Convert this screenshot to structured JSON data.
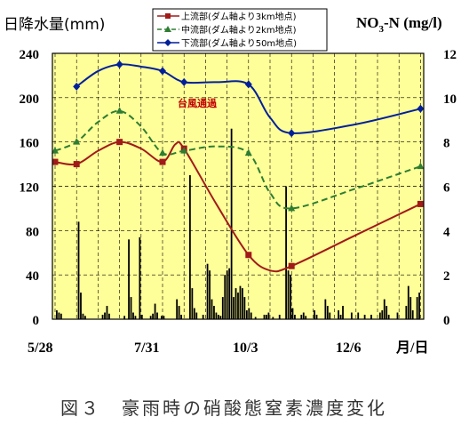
{
  "chart_data": {
    "type": "line",
    "left_axis_title": "日降水量(mm)",
    "right_axis_title_main": "NO",
    "right_axis_title_sub": "3",
    "right_axis_title_rest": "-N (mg/l)",
    "x_ticks": [
      "5/28",
      "7/31",
      "10/3",
      "12/6",
      "月/日"
    ],
    "y_left_ticks": [
      "0",
      "40",
      "80",
      "120",
      "160",
      "200",
      "240"
    ],
    "y_right_ticks": [
      "0",
      "2",
      "4",
      "6",
      "8",
      "10",
      "12"
    ],
    "ylim_left": [
      0,
      240
    ],
    "ylim_right": [
      0,
      12
    ],
    "annotation": "台風通過",
    "caption": "図３　豪雨時の硝酸態窒素濃度変化",
    "grid": true,
    "legend_position": "top-center",
    "colors": {
      "plot_bg": "#ffff99",
      "series_1": "#a11a1a",
      "series_2": "#2e7d32",
      "series_3": "#001f9a",
      "rain_bars": "#000000",
      "annotation": "#c00000"
    },
    "series": [
      {
        "name": "上流部(ダム軸より3km地点)",
        "marker": "square",
        "dash": "solid",
        "points": [
          [
            0,
            7.1
          ],
          [
            1,
            7.0
          ],
          [
            3,
            8.0
          ],
          [
            5,
            7.1
          ],
          [
            6,
            7.7
          ],
          [
            9,
            2.9
          ],
          [
            11,
            2.4
          ],
          [
            17,
            5.2
          ]
        ],
        "curve": [
          [
            0,
            7.1
          ],
          [
            1,
            7.0
          ],
          [
            2,
            7.6
          ],
          [
            3,
            8.0
          ],
          [
            4,
            7.7
          ],
          [
            5,
            7.1
          ],
          [
            5.6,
            7.9
          ],
          [
            6,
            7.7
          ],
          [
            7.5,
            5.2
          ],
          [
            9,
            2.9
          ],
          [
            10,
            2.2
          ],
          [
            11,
            2.4
          ],
          [
            14,
            3.8
          ],
          [
            17,
            5.2
          ]
        ]
      },
      {
        "name": "中流部(ダム軸より2km地点)",
        "marker": "triangle",
        "dash": "dashed",
        "points": [
          [
            0,
            7.6
          ],
          [
            1,
            8.0
          ],
          [
            3,
            9.4
          ],
          [
            5,
            7.5
          ],
          [
            6,
            7.6
          ],
          [
            9,
            7.5
          ],
          [
            11,
            5.0
          ],
          [
            17,
            6.9
          ]
        ],
        "curve": [
          [
            0,
            7.6
          ],
          [
            1,
            8.0
          ],
          [
            2,
            8.9
          ],
          [
            3,
            9.4
          ],
          [
            4,
            8.7
          ],
          [
            5,
            7.5
          ],
          [
            6,
            7.6
          ],
          [
            7.5,
            7.8
          ],
          [
            9,
            7.5
          ],
          [
            10,
            5.7
          ],
          [
            11,
            5.0
          ],
          [
            14,
            5.9
          ],
          [
            17,
            6.9
          ]
        ]
      },
      {
        "name": "下流部(ダム軸より50m地点)",
        "marker": "diamond",
        "dash": "solid",
        "points": [
          [
            1,
            10.5
          ],
          [
            3,
            11.5
          ],
          [
            5,
            11.2
          ],
          [
            6,
            10.7
          ],
          [
            9,
            10.6
          ],
          [
            11,
            8.4
          ],
          [
            17,
            9.5
          ]
        ],
        "curve": [
          [
            1,
            10.5
          ],
          [
            2,
            11.2
          ],
          [
            3,
            11.5
          ],
          [
            4,
            11.4
          ],
          [
            5,
            11.2
          ],
          [
            6,
            10.7
          ],
          [
            7.5,
            10.7
          ],
          [
            9,
            10.6
          ],
          [
            10,
            9.1
          ],
          [
            11,
            8.4
          ],
          [
            14,
            8.8
          ],
          [
            17,
            9.5
          ]
        ]
      }
    ],
    "rain_daily_mm": [
      [
        2,
        8
      ],
      [
        3,
        6
      ],
      [
        4,
        5
      ],
      [
        12,
        88
      ],
      [
        13,
        24
      ],
      [
        14,
        5
      ],
      [
        15,
        3
      ],
      [
        23,
        4
      ],
      [
        24,
        6
      ],
      [
        25,
        12
      ],
      [
        26,
        5
      ],
      [
        33,
        3
      ],
      [
        35,
        72
      ],
      [
        36,
        20
      ],
      [
        37,
        6
      ],
      [
        38,
        3
      ],
      [
        40,
        74
      ],
      [
        41,
        4
      ],
      [
        45,
        3
      ],
      [
        46,
        5
      ],
      [
        47,
        14
      ],
      [
        48,
        6
      ],
      [
        50,
        3
      ],
      [
        51,
        3
      ],
      [
        57,
        18
      ],
      [
        58,
        12
      ],
      [
        59,
        4
      ],
      [
        63,
        130
      ],
      [
        64,
        28
      ],
      [
        65,
        10
      ],
      [
        66,
        6
      ],
      [
        69,
        4
      ],
      [
        71,
        50
      ],
      [
        72,
        44
      ],
      [
        73,
        18
      ],
      [
        74,
        12
      ],
      [
        75,
        6
      ],
      [
        76,
        4
      ],
      [
        77,
        3
      ],
      [
        78,
        20
      ],
      [
        79,
        40
      ],
      [
        80,
        44
      ],
      [
        81,
        46
      ],
      [
        82,
        172
      ],
      [
        83,
        20
      ],
      [
        84,
        28
      ],
      [
        85,
        24
      ],
      [
        86,
        30
      ],
      [
        87,
        28
      ],
      [
        88,
        20
      ],
      [
        89,
        8
      ],
      [
        90,
        10
      ],
      [
        91,
        6
      ],
      [
        93,
        2
      ],
      [
        97,
        4
      ],
      [
        98,
        4
      ],
      [
        99,
        6
      ],
      [
        101,
        2
      ],
      [
        104,
        4
      ],
      [
        107,
        120
      ],
      [
        108,
        44
      ],
      [
        109,
        40
      ],
      [
        110,
        10
      ],
      [
        111,
        4
      ],
      [
        114,
        4
      ],
      [
        115,
        6
      ],
      [
        116,
        3
      ],
      [
        120,
        8
      ],
      [
        121,
        4
      ],
      [
        125,
        18
      ],
      [
        126,
        12
      ],
      [
        127,
        6
      ],
      [
        131,
        8
      ],
      [
        132,
        4
      ],
      [
        133,
        12
      ],
      [
        137,
        6
      ],
      [
        140,
        6
      ],
      [
        143,
        4
      ],
      [
        146,
        4
      ],
      [
        150,
        6
      ],
      [
        151,
        8
      ],
      [
        152,
        18
      ],
      [
        153,
        12
      ],
      [
        154,
        4
      ],
      [
        158,
        6
      ],
      [
        162,
        12
      ],
      [
        163,
        30
      ],
      [
        164,
        20
      ],
      [
        165,
        8
      ],
      [
        167,
        20
      ],
      [
        168,
        24
      ]
    ]
  }
}
